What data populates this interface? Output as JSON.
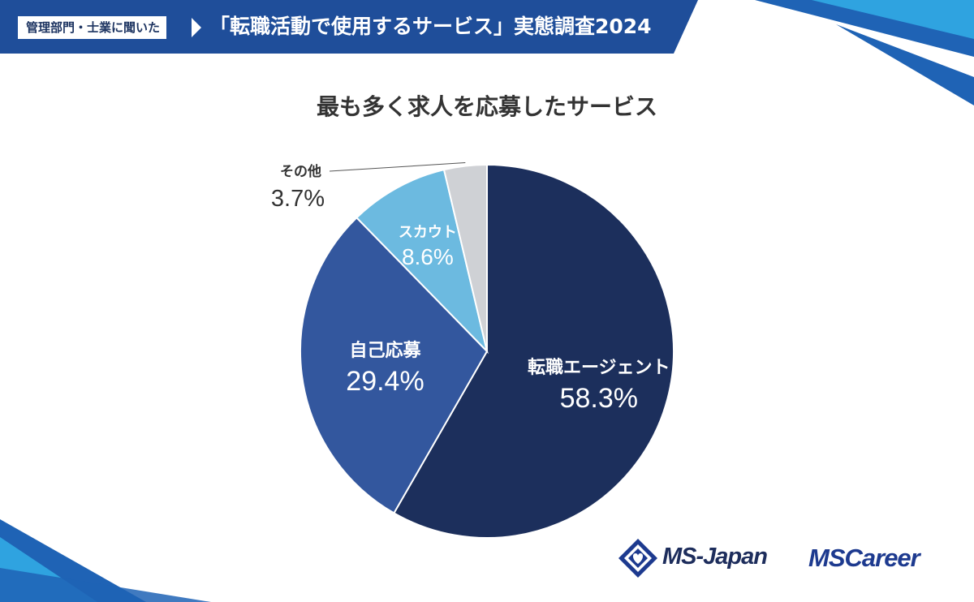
{
  "header": {
    "badge": "管理部門・士業に聞いた",
    "title": "「転職活動で使用するサービス」実態調査2024"
  },
  "colors": {
    "header_bg": "#1f4e9a",
    "accent_light": "#2fa3e0",
    "text_dark": "#333333"
  },
  "chart_data": {
    "type": "pie",
    "title": "最も多く求人を応募したサービス",
    "slices": [
      {
        "label": "転職エージェント",
        "value": 58.3,
        "value_label": "58.3%",
        "color": "#1c2f5c"
      },
      {
        "label": "自己応募",
        "value": 29.4,
        "value_label": "29.4%",
        "color": "#33579e"
      },
      {
        "label": "スカウト",
        "value": 8.6,
        "value_label": "8.6%",
        "color": "#6cbae0"
      },
      {
        "label": "その他",
        "value": 3.7,
        "value_label": "3.7%",
        "color": "#cfd1d5"
      }
    ]
  },
  "logos": {
    "msjapan": "MS-Japan",
    "mscareer": "MSCareer",
    "msjapan_icon": "ms-japan-diamond-heart-icon"
  }
}
